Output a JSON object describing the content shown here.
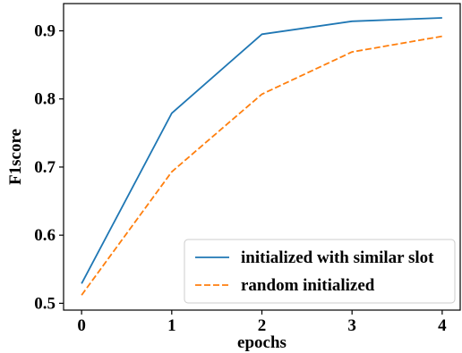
{
  "chart_data": {
    "type": "line",
    "xlabel": "epochs",
    "ylabel": "F1score",
    "x": [
      0,
      1,
      2,
      3,
      4
    ],
    "xlim": [
      -0.2,
      4.2
    ],
    "ylim": [
      0.49,
      0.94
    ],
    "xticks": [
      0,
      1,
      2,
      3,
      4
    ],
    "yticks": [
      0.5,
      0.6,
      0.7,
      0.8,
      0.9
    ],
    "ytick_labels": [
      "0.5",
      "0.6",
      "0.7",
      "0.8",
      "0.9"
    ],
    "grid": false,
    "legend_position": "bottom-right",
    "series": [
      {
        "name": "initialized with similar slot",
        "values": [
          0.529,
          0.779,
          0.895,
          0.914,
          0.919
        ],
        "color": "#1f77b4",
        "style": "solid"
      },
      {
        "name": "random initialized",
        "values": [
          0.512,
          0.693,
          0.807,
          0.869,
          0.892
        ],
        "color": "#ff7f0e",
        "style": "dashed"
      }
    ]
  }
}
